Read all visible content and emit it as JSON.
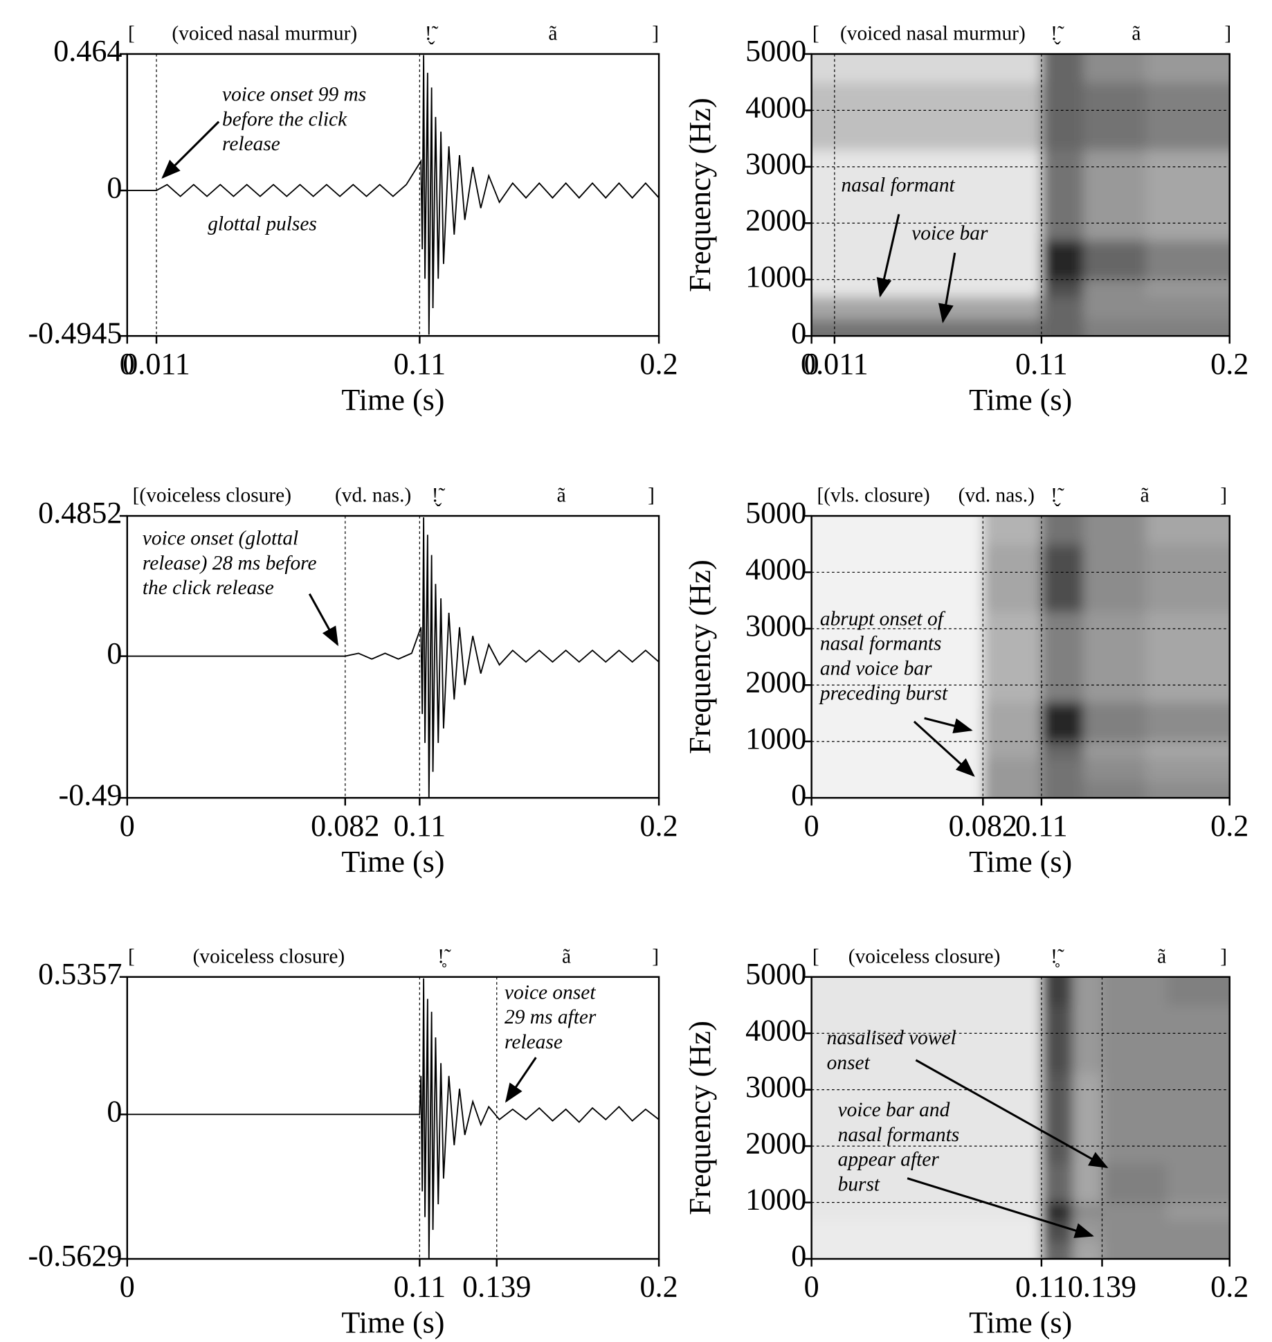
{
  "chart_data": [
    {
      "type": "line",
      "color": "#000000",
      "transcription": [
        "[",
        "(voiced nasal murmur)",
        "ǃ̬̃",
        "ã",
        "]"
      ],
      "xlabel": "Time (s)",
      "xlim": [
        0,
        0.2
      ],
      "xticks": [
        0,
        0.011,
        0.11,
        0.2
      ],
      "ylim": [
        -0.4945,
        0.464
      ],
      "yticks": [
        -0.4945,
        0,
        0.464
      ],
      "markers": [
        0.011,
        0.11
      ],
      "annotations": [
        {
          "lines": [
            "voice onset 99 ms",
            "before the click",
            "release"
          ]
        },
        {
          "lines": [
            "glottal pulses"
          ]
        }
      ],
      "x": [
        0,
        0.011,
        0.015,
        0.02,
        0.025,
        0.03,
        0.035,
        0.04,
        0.045,
        0.05,
        0.055,
        0.06,
        0.065,
        0.07,
        0.075,
        0.08,
        0.085,
        0.09,
        0.095,
        0.1,
        0.105,
        0.1105,
        0.111,
        0.1115,
        0.112,
        0.113,
        0.1135,
        0.1145,
        0.115,
        0.116,
        0.117,
        0.118,
        0.119,
        0.121,
        0.123,
        0.125,
        0.127,
        0.13,
        0.133,
        0.136,
        0.14,
        0.145,
        0.15,
        0.155,
        0.16,
        0.165,
        0.17,
        0.175,
        0.18,
        0.185,
        0.19,
        0.195,
        0.2
      ],
      "values": [
        0,
        0,
        0.02,
        -0.02,
        0.02,
        -0.02,
        0.02,
        -0.02,
        0.02,
        -0.02,
        0.02,
        -0.02,
        0.02,
        -0.02,
        0.02,
        -0.02,
        0.02,
        -0.02,
        0.02,
        -0.02,
        0.02,
        0.1,
        -0.2,
        0.46,
        -0.3,
        0.4,
        -0.49,
        0.35,
        -0.4,
        0.25,
        -0.3,
        0.2,
        -0.25,
        0.15,
        -0.15,
        0.12,
        -0.1,
        0.08,
        -0.06,
        0.05,
        -0.04,
        0.025,
        -0.025,
        0.025,
        -0.025,
        0.025,
        -0.025,
        0.025,
        -0.025,
        0.025,
        -0.025,
        0.025,
        -0.025
      ]
    },
    {
      "type": "spectrogram",
      "colormap": "gray",
      "grid": true,
      "transcription": [
        "[",
        "(voiced nasal murmur)",
        "ǃ̬̃",
        "ã",
        "]"
      ],
      "xlabel": "Time (s)",
      "ylabel": "Frequency (Hz)",
      "xlim": [
        0,
        0.2
      ],
      "xticks": [
        0,
        0.011,
        0.11,
        0.2
      ],
      "ylim": [
        0,
        5000
      ],
      "yticks": [
        0,
        1000,
        2000,
        3000,
        4000,
        5000
      ],
      "markers": [
        0.011,
        0.11
      ],
      "annotations": [
        {
          "lines": [
            "nasal formant"
          ]
        },
        {
          "lines": [
            "voice bar"
          ]
        }
      ],
      "time_edges": [
        0,
        0.11,
        0.13,
        0.16,
        0.2
      ],
      "freq_edges": [
        0,
        300,
        700,
        1000,
        1700,
        3300,
        4500,
        5000
      ],
      "intensity": [
        [
          0.55,
          0.35,
          0.1,
          0.1,
          0.1,
          0.25,
          0.15
        ],
        [
          0.6,
          0.6,
          0.7,
          0.85,
          0.55,
          0.6,
          0.6
        ],
        [
          0.5,
          0.45,
          0.45,
          0.6,
          0.4,
          0.55,
          0.45
        ],
        [
          0.5,
          0.45,
          0.4,
          0.5,
          0.35,
          0.5,
          0.4
        ]
      ]
    },
    {
      "type": "line",
      "color": "#000000",
      "transcription": [
        "[(voiceless closure)",
        "(vd. nas.)",
        "ǃ̬̃",
        "ã",
        "]"
      ],
      "xlabel": "Time (s)",
      "xlim": [
        0,
        0.2
      ],
      "xticks": [
        0,
        0.082,
        0.11,
        0.2
      ],
      "ylim": [
        -0.49,
        0.4852
      ],
      "yticks": [
        -0.49,
        0,
        0.4852
      ],
      "markers": [
        0.082,
        0.11
      ],
      "annotations": [
        {
          "lines": [
            "voice onset  (glottal",
            "release) 28 ms before",
            "the click release"
          ]
        }
      ],
      "x": [
        0,
        0.04,
        0.082,
        0.087,
        0.092,
        0.097,
        0.102,
        0.107,
        0.1105,
        0.111,
        0.1115,
        0.112,
        0.113,
        0.1135,
        0.1145,
        0.115,
        0.116,
        0.117,
        0.118,
        0.119,
        0.121,
        0.123,
        0.125,
        0.127,
        0.13,
        0.133,
        0.136,
        0.14,
        0.145,
        0.15,
        0.155,
        0.16,
        0.165,
        0.17,
        0.175,
        0.18,
        0.185,
        0.19,
        0.195,
        0.2
      ],
      "values": [
        0,
        0,
        0,
        0.01,
        -0.01,
        0.01,
        -0.01,
        0.01,
        0.1,
        -0.2,
        0.48,
        -0.3,
        0.42,
        -0.49,
        0.35,
        -0.4,
        0.25,
        -0.3,
        0.2,
        -0.25,
        0.15,
        -0.15,
        0.1,
        -0.1,
        0.07,
        -0.06,
        0.04,
        -0.03,
        0.02,
        -0.02,
        0.02,
        -0.02,
        0.02,
        -0.02,
        0.02,
        -0.02,
        0.02,
        -0.02,
        0.02,
        -0.02
      ]
    },
    {
      "type": "spectrogram",
      "colormap": "gray",
      "grid": true,
      "transcription": [
        "[(vls. closure)",
        "(vd. nas.)",
        "ǃ̬̃",
        "ã",
        "]"
      ],
      "xlabel": "Time (s)",
      "ylabel": "Frequency (Hz)",
      "xlim": [
        0,
        0.2
      ],
      "xticks": [
        0,
        0.082,
        0.11,
        0.2
      ],
      "ylim": [
        0,
        5000
      ],
      "yticks": [
        0,
        1000,
        2000,
        3000,
        4000,
        5000
      ],
      "markers": [
        0.082,
        0.11
      ],
      "annotations": [
        {
          "lines": [
            "abrupt onset of",
            "nasal formants",
            "and voice bar",
            "preceding burst"
          ]
        }
      ],
      "time_edges": [
        0,
        0.082,
        0.11,
        0.13,
        0.16,
        0.2
      ],
      "freq_edges": [
        0,
        300,
        700,
        1000,
        1700,
        3300,
        4500,
        5000
      ],
      "intensity": [
        [
          0.05,
          0.05,
          0.05,
          0.05,
          0.05,
          0.05,
          0.05
        ],
        [
          0.4,
          0.4,
          0.35,
          0.35,
          0.3,
          0.35,
          0.3
        ],
        [
          0.55,
          0.55,
          0.6,
          0.85,
          0.5,
          0.7,
          0.55
        ],
        [
          0.5,
          0.45,
          0.4,
          0.5,
          0.4,
          0.45,
          0.45
        ],
        [
          0.45,
          0.4,
          0.35,
          0.45,
          0.35,
          0.4,
          0.35
        ]
      ]
    },
    {
      "type": "line",
      "color": "#000000",
      "transcription": [
        "[",
        "(voiceless closure)",
        "ǃ̥̃",
        "ã",
        "]"
      ],
      "xlabel": "Time (s)",
      "xlim": [
        0,
        0.2
      ],
      "xticks": [
        0,
        0.11,
        0.139,
        0.2
      ],
      "ylim": [
        -0.5629,
        0.5357
      ],
      "yticks": [
        -0.5629,
        0,
        0.5357
      ],
      "markers": [
        0.11,
        0.139
      ],
      "annotations": [
        {
          "lines": [
            "voice onset",
            "29 ms after",
            "release"
          ]
        }
      ],
      "x": [
        0,
        0.05,
        0.11,
        0.1105,
        0.111,
        0.1115,
        0.112,
        0.113,
        0.1135,
        0.1145,
        0.115,
        0.116,
        0.117,
        0.118,
        0.119,
        0.121,
        0.123,
        0.125,
        0.127,
        0.13,
        0.133,
        0.136,
        0.14,
        0.145,
        0.15,
        0.155,
        0.16,
        0.165,
        0.17,
        0.175,
        0.18,
        0.185,
        0.19,
        0.195,
        0.2
      ],
      "values": [
        0,
        0,
        0,
        0.15,
        -0.3,
        0.53,
        -0.4,
        0.45,
        -0.56,
        0.4,
        -0.45,
        0.3,
        -0.35,
        0.2,
        -0.25,
        0.15,
        -0.12,
        0.1,
        -0.08,
        0.05,
        -0.04,
        0.03,
        -0.02,
        0.02,
        -0.02,
        0.025,
        -0.025,
        0.02,
        -0.03,
        0.025,
        -0.02,
        0.03,
        -0.025,
        0.02,
        -0.02
      ]
    },
    {
      "type": "spectrogram",
      "colormap": "gray",
      "grid": true,
      "transcription": [
        "[",
        "(voiceless closure)",
        "ǃ̥̃",
        "ã",
        "]"
      ],
      "xlabel": "Time (s)",
      "ylabel": "Frequency (Hz)",
      "xlim": [
        0,
        0.2
      ],
      "xticks": [
        0,
        0.11,
        0.139,
        0.2
      ],
      "ylim": [
        0,
        5000
      ],
      "yticks": [
        0,
        1000,
        2000,
        3000,
        4000,
        5000
      ],
      "markers": [
        0.11,
        0.139
      ],
      "annotations": [
        {
          "lines": [
            "nasalised vowel",
            "onset"
          ]
        },
        {
          "lines": [
            "voice bar and",
            "nasal formants",
            "appear after",
            "burst"
          ]
        }
      ],
      "time_edges": [
        0,
        0.11,
        0.125,
        0.139,
        0.17,
        0.2
      ],
      "freq_edges": [
        0,
        300,
        700,
        1000,
        1700,
        3300,
        4500,
        5000
      ],
      "intensity": [
        [
          0.08,
          0.08,
          0.1,
          0.1,
          0.1,
          0.1,
          0.1
        ],
        [
          0.6,
          0.7,
          0.85,
          0.6,
          0.65,
          0.7,
          0.75
        ],
        [
          0.35,
          0.4,
          0.45,
          0.35,
          0.35,
          0.4,
          0.4
        ],
        [
          0.45,
          0.45,
          0.45,
          0.5,
          0.45,
          0.45,
          0.45
        ],
        [
          0.45,
          0.45,
          0.4,
          0.45,
          0.45,
          0.45,
          0.5
        ]
      ]
    }
  ]
}
